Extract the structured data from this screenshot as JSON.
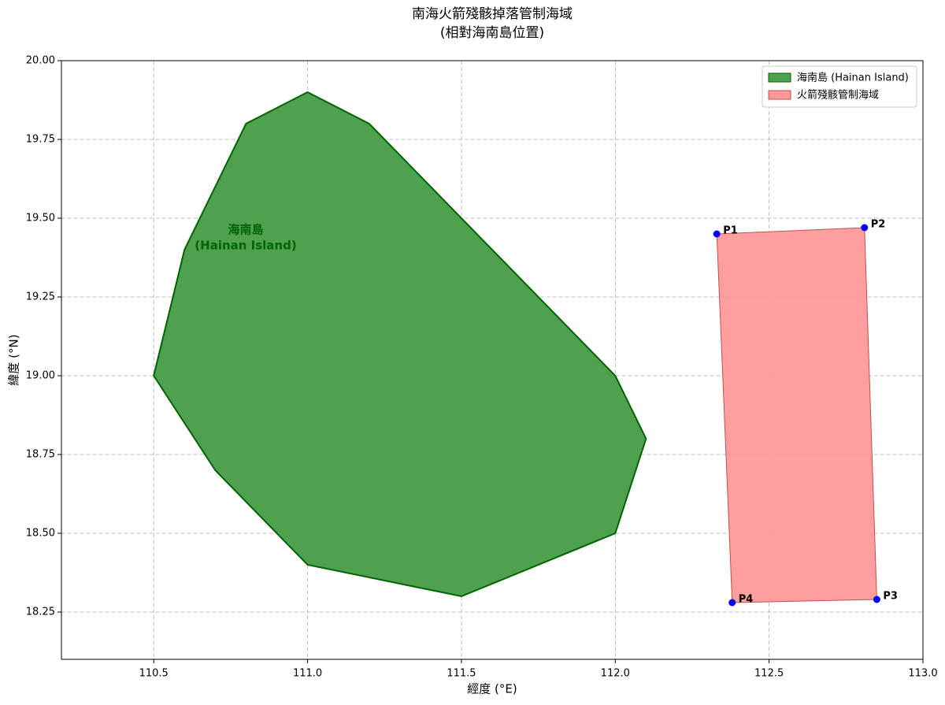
{
  "chart_data": {
    "type": "polygon",
    "title": [
      "南海火箭殘骸掉落管制海域",
      "(相對海南島位置)"
    ],
    "x_label": "經度 (°E)",
    "y_label": "緯度 (°N)",
    "xlim": [
      110.2,
      113.0
    ],
    "ylim": [
      18.1,
      20.0
    ],
    "xticks": [
      110.5,
      {
        "value": 111,
        "label": "111.0"
      },
      111.5,
      {
        "value": 112,
        "label": "112.0"
      },
      112.5,
      {
        "value": 113,
        "label": "113.0"
      }
    ],
    "yticks": [
      18.25,
      {
        "value": 18.5,
        "label": "18.50"
      },
      18.75,
      {
        "value": 19,
        "label": "19.00"
      },
      19.25,
      {
        "value": 19.5,
        "label": "19.50"
      },
      19.75,
      {
        "value": 20,
        "label": "20.00"
      }
    ],
    "grid": true,
    "legend": "upper right",
    "series": [
      {
        "name": "海南島 (Hainan Island)",
        "color": "#4fa14f",
        "edge_color": "#006400",
        "x": [
          110.5,
          110.6,
          110.8,
          111.0,
          111.2,
          112.0,
          112.1,
          112.0,
          111.5,
          111.0,
          110.7
        ],
        "y": [
          19.0,
          19.4,
          19.8,
          19.9,
          19.8,
          19.0,
          18.8,
          18.5,
          18.3,
          18.4,
          18.7
        ]
      },
      {
        "name": "火箭殘骸管制海域",
        "color": "#ff9999",
        "edge_color": "#c05050",
        "point_color": "#0000ff",
        "x": [
          112.33,
          112.81,
          112.85,
          112.38
        ],
        "y": [
          19.45,
          19.47,
          18.29,
          18.28
        ],
        "point_labels": [
          "P1",
          "P2",
          "P3",
          "P4"
        ]
      }
    ],
    "annotation": [
      "海南島",
      "(Hainan Island)"
    ]
  }
}
